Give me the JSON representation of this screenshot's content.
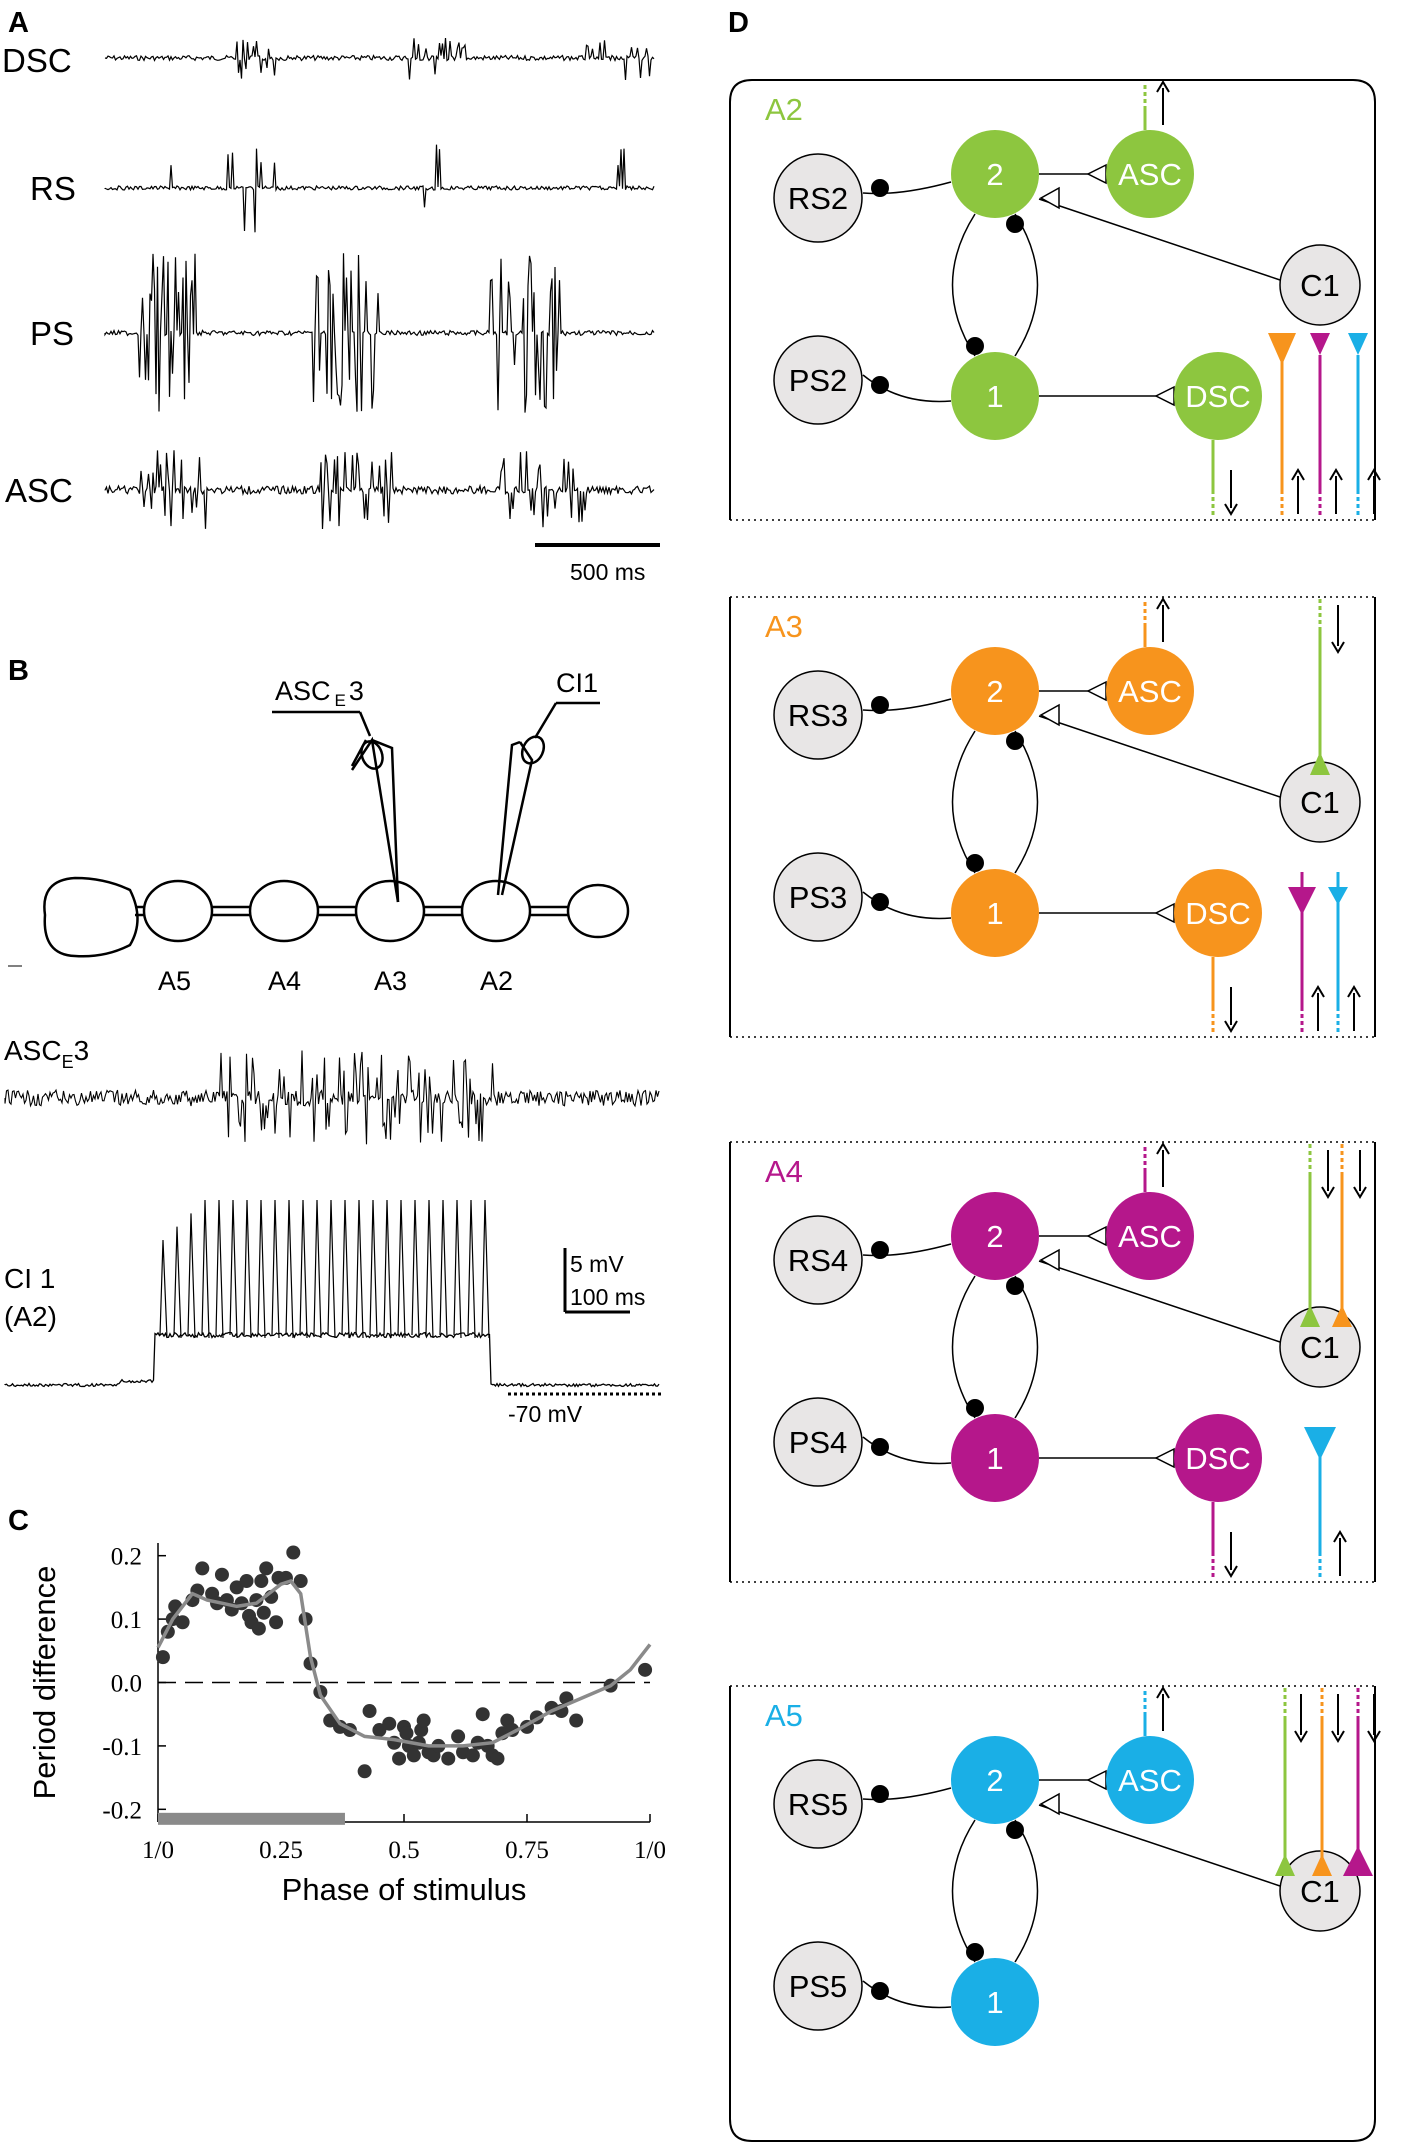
{
  "panels": {
    "A": "A",
    "B": "B",
    "C": "C",
    "D": "D"
  },
  "traces": {
    "dsc": "DSC",
    "rs": "RS",
    "ps": "PS",
    "asc": "ASC",
    "scale_label": "500 ms"
  },
  "panel_b": {
    "electrode_left": "ASC",
    "electrode_left_sub": "E",
    "electrode_left_num": "3",
    "electrode_right": "CI1",
    "segments": [
      "A5",
      "A4",
      "A3",
      "A2"
    ],
    "trace1_main": "ASC",
    "trace1_sub": "E",
    "trace1_num": "3",
    "trace2_line1": "CI 1",
    "trace2_line2": "(A2)",
    "scale_v": "5 mV",
    "scale_t": "100 ms",
    "rest": "-70 mV"
  },
  "colors": {
    "A2": "#8dc63f",
    "A3": "#f7941d",
    "A4": "#b5178b",
    "A5": "#1aafe6",
    "grey_node": "#e8e6e6",
    "fit_line": "#8a8a8a"
  },
  "network": [
    {
      "segment": "A2",
      "rs": "RS2",
      "ps": "PS2",
      "n2": "2",
      "n1": "1",
      "asc": "ASC",
      "dsc": "DSC",
      "c1": "C1"
    },
    {
      "segment": "A3",
      "rs": "RS3",
      "ps": "PS3",
      "n2": "2",
      "n1": "1",
      "asc": "ASC",
      "dsc": "DSC",
      "c1": "C1"
    },
    {
      "segment": "A4",
      "rs": "RS4",
      "ps": "PS4",
      "n2": "2",
      "n1": "1",
      "asc": "ASC",
      "dsc": "DSC",
      "c1": "C1"
    },
    {
      "segment": "A5",
      "rs": "RS5",
      "ps": "PS5",
      "n2": "2",
      "n1": "1",
      "asc": "ASC",
      "dsc": "",
      "c1": "C1"
    }
  ],
  "chart_data": {
    "type": "scatter",
    "xlabel": "Phase of stimulus",
    "ylabel": "Period difference",
    "xlim": [
      0,
      1
    ],
    "ylim": [
      -0.22,
      0.22
    ],
    "xticks": [
      "1/0",
      "0.25",
      "0.5",
      "0.75",
      "1/0"
    ],
    "xtick_values": [
      0,
      0.25,
      0.5,
      0.75,
      1.0
    ],
    "yticks": [
      "0.2",
      "0.1",
      "0.0",
      "-0.1",
      "-0.2"
    ],
    "ytick_values": [
      0.2,
      0.1,
      0.0,
      -0.1,
      -0.2
    ],
    "zero_line": true,
    "bar": {
      "from": 0.0,
      "to": 0.38,
      "y": -0.215
    },
    "points": [
      [
        0.01,
        0.04
      ],
      [
        0.02,
        0.08
      ],
      [
        0.03,
        0.1
      ],
      [
        0.035,
        0.12
      ],
      [
        0.05,
        0.095
      ],
      [
        0.07,
        0.13
      ],
      [
        0.08,
        0.145
      ],
      [
        0.09,
        0.18
      ],
      [
        0.11,
        0.14
      ],
      [
        0.12,
        0.125
      ],
      [
        0.13,
        0.17
      ],
      [
        0.14,
        0.13
      ],
      [
        0.15,
        0.115
      ],
      [
        0.16,
        0.15
      ],
      [
        0.17,
        0.125
      ],
      [
        0.18,
        0.16
      ],
      [
        0.185,
        0.105
      ],
      [
        0.19,
        0.095
      ],
      [
        0.2,
        0.13
      ],
      [
        0.205,
        0.085
      ],
      [
        0.21,
        0.16
      ],
      [
        0.215,
        0.11
      ],
      [
        0.22,
        0.18
      ],
      [
        0.23,
        0.135
      ],
      [
        0.24,
        0.095
      ],
      [
        0.245,
        0.165
      ],
      [
        0.26,
        0.165
      ],
      [
        0.275,
        0.205
      ],
      [
        0.29,
        0.16
      ],
      [
        0.3,
        0.1
      ],
      [
        0.31,
        0.03
      ],
      [
        0.33,
        -0.015
      ],
      [
        0.35,
        -0.06
      ],
      [
        0.37,
        -0.07
      ],
      [
        0.39,
        -0.075
      ],
      [
        0.42,
        -0.14
      ],
      [
        0.43,
        -0.045
      ],
      [
        0.45,
        -0.075
      ],
      [
        0.47,
        -0.065
      ],
      [
        0.48,
        -0.095
      ],
      [
        0.49,
        -0.12
      ],
      [
        0.5,
        -0.07
      ],
      [
        0.505,
        -0.08
      ],
      [
        0.51,
        -0.1
      ],
      [
        0.52,
        -0.115
      ],
      [
        0.53,
        -0.095
      ],
      [
        0.535,
        -0.075
      ],
      [
        0.54,
        -0.06
      ],
      [
        0.55,
        -0.11
      ],
      [
        0.56,
        -0.115
      ],
      [
        0.57,
        -0.1
      ],
      [
        0.59,
        -0.12
      ],
      [
        0.61,
        -0.085
      ],
      [
        0.62,
        -0.11
      ],
      [
        0.64,
        -0.115
      ],
      [
        0.65,
        -0.095
      ],
      [
        0.66,
        -0.05
      ],
      [
        0.67,
        -0.1
      ],
      [
        0.68,
        -0.115
      ],
      [
        0.69,
        -0.12
      ],
      [
        0.7,
        -0.08
      ],
      [
        0.71,
        -0.06
      ],
      [
        0.72,
        -0.075
      ],
      [
        0.75,
        -0.07
      ],
      [
        0.77,
        -0.055
      ],
      [
        0.8,
        -0.04
      ],
      [
        0.82,
        -0.045
      ],
      [
        0.83,
        -0.025
      ],
      [
        0.85,
        -0.06
      ],
      [
        0.92,
        -0.005
      ],
      [
        0.99,
        0.02
      ]
    ],
    "fit": [
      [
        0.0,
        0.055
      ],
      [
        0.03,
        0.1
      ],
      [
        0.07,
        0.14
      ],
      [
        0.1,
        0.13
      ],
      [
        0.13,
        0.125
      ],
      [
        0.16,
        0.12
      ],
      [
        0.2,
        0.125
      ],
      [
        0.25,
        0.155
      ],
      [
        0.27,
        0.16
      ],
      [
        0.29,
        0.14
      ],
      [
        0.31,
        0.04
      ],
      [
        0.33,
        -0.02
      ],
      [
        0.37,
        -0.065
      ],
      [
        0.42,
        -0.085
      ],
      [
        0.48,
        -0.09
      ],
      [
        0.55,
        -0.1
      ],
      [
        0.62,
        -0.1
      ],
      [
        0.68,
        -0.095
      ],
      [
        0.73,
        -0.075
      ],
      [
        0.8,
        -0.045
      ],
      [
        0.86,
        -0.025
      ],
      [
        0.92,
        -0.005
      ],
      [
        0.96,
        0.02
      ],
      [
        1.0,
        0.06
      ]
    ]
  }
}
